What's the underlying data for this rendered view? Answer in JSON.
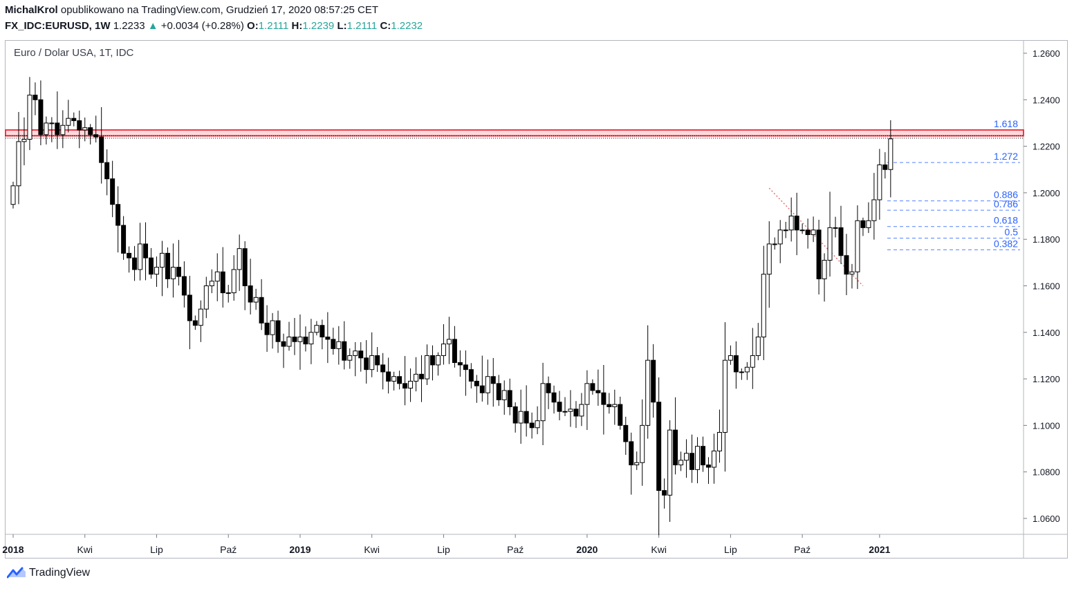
{
  "header": {
    "author": "MichalKrol",
    "published": "opublikowano na TradingView.com, Grudzień 17, 2020 08:57:25 CET",
    "symbol": "FX_IDC:EURUSD, 1W",
    "last": "1.2233",
    "change_arrow": "▲",
    "change": "+0.0034 (+0.28%)",
    "o_label": "O:",
    "o_value": "1.2111",
    "h_label": "H:",
    "h_value": "1.2239",
    "l_label": "L:",
    "l_value": "1.2111",
    "c_label": "C:",
    "c_value": "1.2232"
  },
  "footer": {
    "brand": "TradingView",
    "logo_icon": "tradingview-logo-icon"
  },
  "colors": {
    "up": "#ffffff",
    "down": "#000000",
    "positive_text": "#26a69a",
    "resistance": "#f23645",
    "fib": "#2962ff",
    "fib_text": "#2962ff",
    "trendline": "#e57373"
  },
  "chart_data": {
    "type": "candlestick",
    "title": "Euro / Dolar USA, 1T, IDC",
    "ylim": [
      1.055,
      1.264
    ],
    "y_ticks": [
      1.26,
      1.24,
      1.22,
      1.2,
      1.18,
      1.16,
      1.14,
      1.12,
      1.1,
      1.08,
      1.06
    ],
    "x_ticks": [
      {
        "label": "2018",
        "week": 0,
        "bold": true
      },
      {
        "label": "Kwi",
        "week": 13,
        "bold": false
      },
      {
        "label": "Lip",
        "week": 26,
        "bold": false
      },
      {
        "label": "Paź",
        "week": 39,
        "bold": false
      },
      {
        "label": "2019",
        "week": 52,
        "bold": true
      },
      {
        "label": "Kwi",
        "week": 65,
        "bold": false
      },
      {
        "label": "Lip",
        "week": 78,
        "bold": false
      },
      {
        "label": "Paź",
        "week": 91,
        "bold": false
      },
      {
        "label": "2020",
        "week": 104,
        "bold": true
      },
      {
        "label": "Kwi",
        "week": 117,
        "bold": false
      },
      {
        "label": "Lip",
        "week": 130,
        "bold": false
      },
      {
        "label": "Paź",
        "week": 143,
        "bold": false
      },
      {
        "label": "2021",
        "week": 157,
        "bold": true
      }
    ],
    "closes": [
      1.203,
      1.222,
      1.223,
      1.242,
      1.24,
      1.225,
      1.23,
      1.23,
      1.225,
      1.229,
      1.232,
      1.231,
      1.227,
      1.228,
      1.225,
      1.224,
      1.213,
      1.206,
      1.195,
      1.186,
      1.174,
      1.172,
      1.167,
      1.178,
      1.172,
      1.165,
      1.168,
      1.174,
      1.163,
      1.168,
      1.164,
      1.156,
      1.145,
      1.143,
      1.15,
      1.16,
      1.162,
      1.166,
      1.157,
      1.157,
      1.167,
      1.176,
      1.16,
      1.153,
      1.155,
      1.144,
      1.139,
      1.145,
      1.136,
      1.134,
      1.138,
      1.136,
      1.138,
      1.135,
      1.14,
      1.143,
      1.138,
      1.137,
      1.133,
      1.136,
      1.128,
      1.13,
      1.132,
      1.129,
      1.124,
      1.13,
      1.126,
      1.123,
      1.119,
      1.121,
      1.118,
      1.116,
      1.119,
      1.122,
      1.12,
      1.13,
      1.126,
      1.13,
      1.135,
      1.137,
      1.127,
      1.126,
      1.124,
      1.119,
      1.117,
      1.114,
      1.121,
      1.118,
      1.111,
      1.115,
      1.108,
      1.101,
      1.106,
      1.101,
      1.099,
      1.102,
      1.118,
      1.114,
      1.11,
      1.106,
      1.106,
      1.107,
      1.104,
      1.109,
      1.118,
      1.115,
      1.114,
      1.109,
      1.108,
      1.109,
      1.1,
      1.093,
      1.083,
      1.084,
      1.1,
      1.128,
      1.11,
      1.072,
      1.07,
      1.098,
      1.083,
      1.085,
      1.088,
      1.081,
      1.091,
      1.083,
      1.082,
      1.089,
      1.097,
      1.128,
      1.13,
      1.123,
      1.123,
      1.125,
      1.13,
      1.138,
      1.165,
      1.178,
      1.178,
      1.184,
      1.184,
      1.19,
      1.184,
      1.184,
      1.182,
      1.184,
      1.163,
      1.171,
      1.185,
      1.185,
      1.173,
      1.165,
      1.166,
      1.188,
      1.185,
      1.188,
      1.197,
      1.212,
      1.21,
      1.2232
    ],
    "annotations": {
      "resistance_zone": [
        1.2245,
        1.227
      ],
      "dotted_lines": [
        1.2235,
        1.2245
      ],
      "fib_levels": [
        {
          "label": "1.618",
          "value": 1.227
        },
        {
          "label": "1.272",
          "value": 1.213
        },
        {
          "label": "0.886",
          "value": 1.1965
        },
        {
          "label": "0.786",
          "value": 1.1925
        },
        {
          "label": "0.618",
          "value": 1.1855
        },
        {
          "label": "0.5",
          "value": 1.1805
        },
        {
          "label": "0.382",
          "value": 1.1755
        }
      ],
      "trendline": {
        "from": [
          137,
          1.202
        ],
        "to": [
          154,
          1.16
        ]
      }
    }
  }
}
